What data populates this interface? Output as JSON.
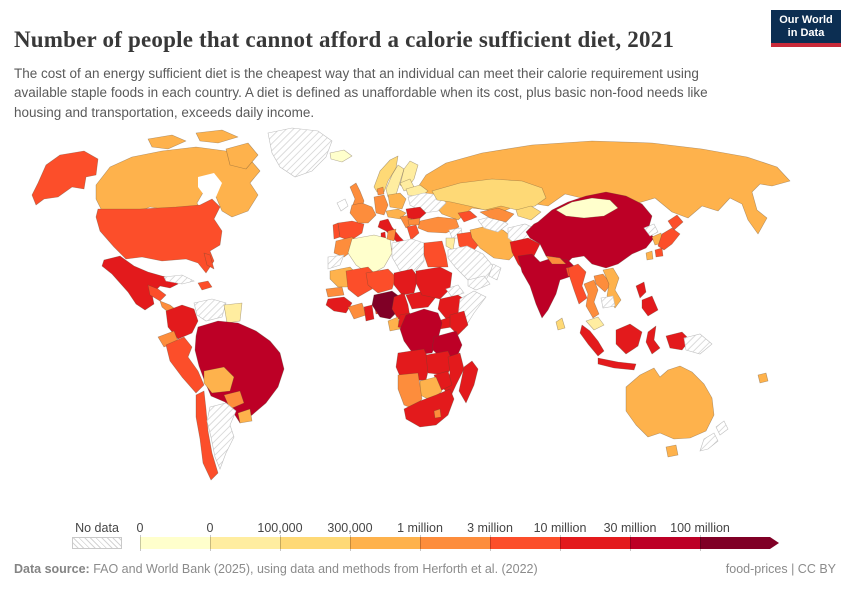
{
  "header": {
    "title": "Number of people that cannot afford a calorie sufficient diet, 2021",
    "subtitle": "The cost of an energy sufficient diet is the cheapest way that an individual can meet their calorie requirement using available staple foods in each country. A diet is defined as unaffordable when its cost, plus basic non-food needs like housing and transportation, exceeds daily income.",
    "logo": {
      "line1": "Our World",
      "line2": "in Data",
      "bg": "#0c2e52",
      "accent": "#c92a39"
    }
  },
  "legend": {
    "no_data_label": "No data",
    "tick_labels": [
      "0",
      "0",
      "100,000",
      "300,000",
      "1 million",
      "3 million",
      "10 million",
      "30 million",
      "100 million"
    ],
    "palette": [
      "#ffffcc",
      "#ffeda0",
      "#fed976",
      "#feb24c",
      "#fd8d3c",
      "#fc4e2a",
      "#e31a1c",
      "#bd0026",
      "#800026"
    ]
  },
  "footer": {
    "source_label": "Data source:",
    "source_text": " FAO and World Bank (2025), using data and methods from Herforth et al. (2022)",
    "rights": "food-prices | CC BY"
  },
  "chart_data": {
    "type": "choropleth_world_map",
    "title": "Number of people that cannot afford a calorie sufficient diet, 2021",
    "year": 2021,
    "unit": "people",
    "legend_position": "bottom",
    "bins": [
      "0",
      "0–100,000",
      "100,000–300,000",
      "300,000–1 million",
      "1–3 million",
      "3–10 million",
      "10–30 million",
      "30–100 million",
      "100 million+"
    ],
    "bin_colors": [
      "#ffffcc",
      "#ffeda0",
      "#fed976",
      "#feb24c",
      "#fd8d3c",
      "#fc4e2a",
      "#e31a1c",
      "#bd0026",
      "#800026"
    ],
    "no_data_style": "hatched",
    "countries": {
      "greenland": "nd",
      "canada": 3,
      "alaska": 5,
      "united-states": 5,
      "mexico": 6,
      "central-america-north": 5,
      "central-america-south": 4,
      "cuba": "nd",
      "hispaniola": 5,
      "colombia": 6,
      "venezuela": "nd",
      "guyana-suriname": 1,
      "ecuador": 4,
      "peru": 5,
      "brazil": 7,
      "bolivia": 3,
      "paraguay": 4,
      "uruguay": 3,
      "chile": 5,
      "argentina": "nd",
      "iceland": 0,
      "norway": 2,
      "sweden": 1,
      "finland": 1,
      "ireland": "w",
      "united-kingdom": 4,
      "portugal": 5,
      "spain": 5,
      "france": 4,
      "germany": 4,
      "denmark": 4,
      "poland": 3,
      "baltics": 1,
      "belarus": 1,
      "ukraine": "nd",
      "czech-austria": 3,
      "italy": 6,
      "balkans": 4,
      "romania": 6,
      "bulgaria": 4,
      "greece": 5,
      "turkey": 4,
      "caucasus": 5,
      "syria": "nd",
      "israel-jordan": 1,
      "iraq": 5,
      "saudi-arabia": "nd",
      "yemen": "nd",
      "oman": "nd",
      "iran": 3,
      "afghanistan": "nd",
      "turkmenistan": "nd",
      "uzbekistan": 4,
      "kazakhstan": 2,
      "kyrgyz-tajik": 2,
      "russia": 3,
      "mongolia": 0,
      "china": 7,
      "taiwan": 3,
      "north-korea": "nd",
      "south-korea": 3,
      "japan": 5,
      "pakistan": 6,
      "india": 7,
      "nepal": 4,
      "bangladesh": 5,
      "sri-lanka": 2,
      "myanmar": 5,
      "thailand": 4,
      "laos": 4,
      "vietnam": 3,
      "cambodia": "nd",
      "malaysia": 1,
      "indonesia": 6,
      "philippines": 6,
      "papua-new-guinea": "nd",
      "australia": 3,
      "new-zealand": "nd",
      "fiji": 3,
      "morocco": 4,
      "western-sahara": "nd",
      "algeria": 0,
      "tunisia": 4,
      "libya": "nd",
      "egypt": 5,
      "mauritania": 3,
      "senegal": 4,
      "guinea": 6,
      "mali": 5,
      "ivory-coast": 4,
      "ghana": 6,
      "togo-benin": 5,
      "niger": 5,
      "nigeria": 8,
      "chad": 6,
      "cameroon": 6,
      "central-african-republic": 6,
      "sudan": 6,
      "eritrea": "nd",
      "ethiopia": 6,
      "somalia": "nd",
      "uganda": 6,
      "kenya": 6,
      "gabon": 3,
      "congo": 6,
      "dr-congo": 7,
      "tanzania": 7,
      "angola": 6,
      "zambia": 6,
      "mozambique": 6,
      "zimbabwe": 6,
      "botswana": 3,
      "namibia": 4,
      "south-africa": 6,
      "lesotho": 4,
      "madagascar": 6
    }
  }
}
